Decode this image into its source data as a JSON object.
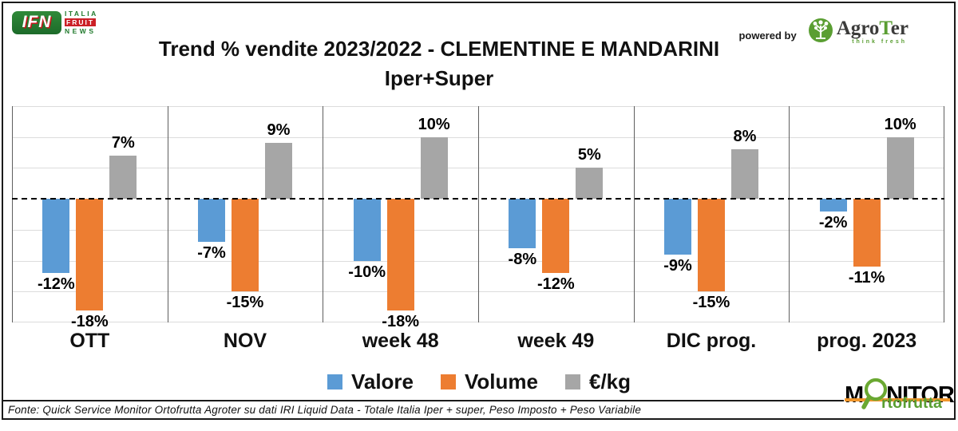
{
  "header": {
    "ifn_logo": {
      "badge": "IFN",
      "line1": "ITALIA",
      "line2": "FRUIT",
      "line3": "NEWS"
    },
    "title_line1": "Trend % vendite 2023/2022 - CLEMENTINE E MANDARINI",
    "title_line2": "Iper+Super",
    "powered_by": "powered by",
    "agroter": {
      "name_part1": "Agro",
      "name_part2": "T",
      "name_part3": "er",
      "tagline": "think fresh"
    }
  },
  "chart_data": {
    "type": "bar",
    "title": "Trend % vendite 2023/2022 - CLEMENTINE E MANDARINI",
    "subtitle": "Iper+Super",
    "categories": [
      "OTT",
      "NOV",
      "week 48",
      "week 49",
      "DIC prog.",
      "prog. 2023"
    ],
    "series": [
      {
        "name": "Valore",
        "color": "#5B9BD5",
        "values": [
          -12,
          -7,
          -10,
          -8,
          -9,
          -2
        ]
      },
      {
        "name": "Volume",
        "color": "#ED7D31",
        "values": [
          -18,
          -15,
          -18,
          -12,
          -15,
          -11
        ]
      },
      {
        "name": "€/kg",
        "color": "#A6A6A6",
        "values": [
          7,
          9,
          10,
          5,
          8,
          10
        ]
      }
    ],
    "value_suffix": "%",
    "ylim": [
      -20,
      15
    ],
    "gridline_step": 5,
    "grid": true,
    "zero_line": "dashed-black",
    "legend_position": "bottom"
  },
  "footer": {
    "source": "Fonte: Quick Service Monitor Ortofrutta Agroter su dati IRI Liquid Data - Totale Italia Iper + super, Peso Imposto + Peso Variabile"
  },
  "monitor_logo": {
    "part1": "M",
    "part2": "NITOR",
    "sub": "rtofrutta"
  },
  "colors": {
    "valore": "#5B9BD5",
    "volume": "#ED7D31",
    "eur_kg": "#A6A6A6",
    "grid": "#DCDCDC",
    "divider": "#5F5F5F",
    "frame": "#1A1A1A",
    "green_brand": "#5A9E32",
    "orange_brand": "#F0962B"
  }
}
